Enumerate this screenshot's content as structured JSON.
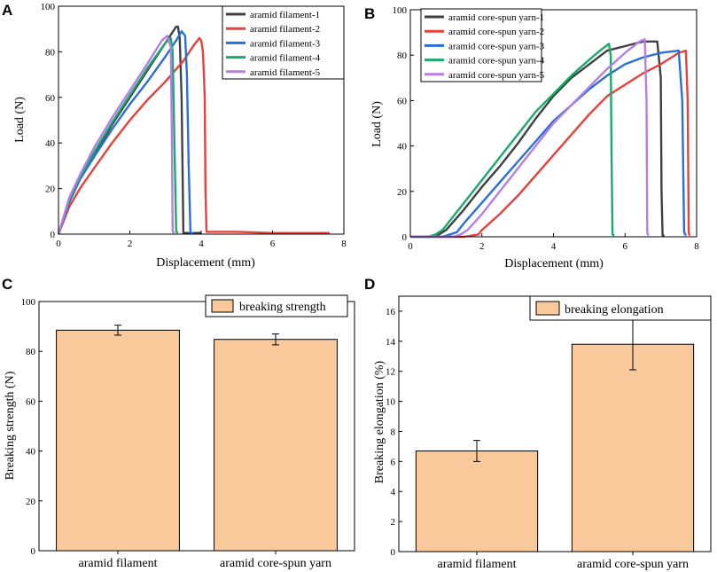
{
  "chart_data": [
    {
      "panel": "A",
      "type": "line",
      "xlabel": "Displacement (mm)",
      "ylabel": "Load (N)",
      "xlim": [
        0,
        8
      ],
      "ylim": [
        0,
        100
      ],
      "xticks": [
        0,
        2,
        4,
        6,
        8
      ],
      "yticks": [
        0,
        20,
        40,
        60,
        80,
        100
      ],
      "legend_position": "top-right",
      "series": [
        {
          "name": "aramid filament-1",
          "color": "#404040",
          "x": [
            0,
            0.3,
            0.6,
            1.0,
            1.5,
            2.0,
            2.5,
            3.0,
            3.3,
            3.35,
            3.4,
            3.45,
            3.48,
            3.5,
            3.7,
            4.0
          ],
          "y": [
            0,
            14,
            24,
            35,
            48,
            60,
            72,
            84,
            91,
            91,
            86,
            60,
            25,
            0.5,
            0.5,
            0.5
          ]
        },
        {
          "name": "aramid filament-2",
          "color": "#e8403a",
          "x": [
            0,
            0.3,
            0.6,
            1.0,
            1.5,
            2.0,
            2.5,
            3.0,
            3.5,
            3.8,
            3.95,
            4.0,
            4.05,
            4.1,
            4.12,
            4.15,
            5.0,
            6.0,
            7.0,
            7.6
          ],
          "y": [
            0,
            12,
            20,
            29,
            40,
            50,
            59,
            67,
            76,
            83,
            86,
            85,
            80,
            60,
            20,
            1,
            1,
            0.5,
            0.5,
            0.5
          ]
        },
        {
          "name": "aramid filament-3",
          "color": "#2a6fd6",
          "x": [
            0,
            0.3,
            0.6,
            1.0,
            1.5,
            2.0,
            2.5,
            3.0,
            3.3,
            3.45,
            3.55,
            3.6,
            3.65,
            3.7,
            3.8
          ],
          "y": [
            0,
            14,
            24,
            34,
            46,
            57,
            67,
            78,
            85,
            89,
            87,
            70,
            30,
            0.5,
            0.5
          ]
        },
        {
          "name": "aramid filament-4",
          "color": "#1aaa6a",
          "x": [
            0,
            0.3,
            0.6,
            1.0,
            1.5,
            2.0,
            2.5,
            3.0,
            3.15,
            3.2,
            3.25,
            3.3,
            3.35
          ],
          "y": [
            0,
            15,
            25,
            36,
            49,
            61,
            73,
            84,
            86,
            80,
            40,
            1,
            0.5
          ]
        },
        {
          "name": "aramid filament-5",
          "color": "#b57ee6",
          "x": [
            0,
            0.3,
            0.6,
            1.0,
            1.5,
            2.0,
            2.5,
            2.9,
            3.05,
            3.15,
            3.18,
            3.2,
            3.25
          ],
          "y": [
            0,
            16,
            26,
            38,
            51,
            63,
            75,
            85,
            87,
            82,
            40,
            1,
            0.5
          ]
        }
      ]
    },
    {
      "panel": "B",
      "type": "line",
      "xlabel": "Displacement (mm)",
      "ylabel": "Load (N)",
      "xlim": [
        0,
        8
      ],
      "ylim": [
        0,
        100
      ],
      "xticks": [
        0,
        2,
        4,
        6,
        8
      ],
      "yticks": [
        0,
        20,
        40,
        60,
        80,
        100
      ],
      "legend_position": "top-left",
      "series": [
        {
          "name": "aramid core-spun yarn-1",
          "color": "#404040",
          "x": [
            0,
            0.5,
            0.8,
            1.0,
            1.5,
            2.0,
            2.5,
            3.0,
            3.5,
            4.0,
            4.5,
            5.0,
            5.5,
            6.0,
            6.5,
            6.9,
            7.0,
            7.02,
            7.05,
            7.1
          ],
          "y": [
            0,
            0,
            1,
            3,
            12,
            22,
            31,
            41,
            52,
            62,
            70,
            76,
            82,
            84,
            86,
            86,
            70,
            20,
            0.5,
            0.5
          ]
        },
        {
          "name": "aramid core-spun yarn-2",
          "color": "#e8403a",
          "x": [
            0,
            1.5,
            1.9,
            2.0,
            2.5,
            3.0,
            3.5,
            4.0,
            4.5,
            5.0,
            5.5,
            6.0,
            6.5,
            7.0,
            7.5,
            7.7,
            7.75,
            7.78,
            7.8
          ],
          "y": [
            0,
            0,
            1,
            3,
            10,
            18,
            27,
            36,
            45,
            54,
            62,
            67,
            72,
            76,
            81,
            82,
            60,
            2,
            0.5
          ]
        },
        {
          "name": "aramid core-spun yarn-3",
          "color": "#2a6fd6",
          "x": [
            0,
            0.9,
            1.1,
            1.3,
            1.5,
            2.0,
            2.5,
            3.0,
            3.5,
            4.0,
            4.5,
            5.0,
            5.5,
            6.0,
            6.5,
            7.0,
            7.5,
            7.6,
            7.65,
            7.7
          ],
          "y": [
            0,
            0,
            1,
            2,
            6,
            15,
            24,
            33,
            42,
            51,
            58,
            65,
            71,
            76,
            79,
            81,
            82,
            60,
            2,
            0.5
          ]
        },
        {
          "name": "aramid core-spun yarn-4",
          "color": "#1aaa6a",
          "x": [
            0,
            0.5,
            0.7,
            0.9,
            1.0,
            1.5,
            2.0,
            2.5,
            3.0,
            3.5,
            4.0,
            4.5,
            5.0,
            5.3,
            5.55,
            5.6,
            5.62,
            5.65,
            5.7
          ],
          "y": [
            0,
            0,
            1,
            3,
            5,
            15,
            25,
            35,
            45,
            55,
            63,
            71,
            78,
            82,
            85,
            80,
            40,
            1,
            0.5
          ]
        },
        {
          "name": "aramid core-spun yarn-5",
          "color": "#b57ee6",
          "x": [
            0,
            1.2,
            1.4,
            1.6,
            2.0,
            2.5,
            3.0,
            3.5,
            4.0,
            4.5,
            5.0,
            5.5,
            6.0,
            6.4,
            6.55,
            6.6,
            6.62,
            6.65
          ],
          "y": [
            0,
            0,
            1,
            3,
            10,
            20,
            30,
            40,
            50,
            58,
            66,
            74,
            81,
            86,
            87,
            60,
            2,
            0.5
          ]
        }
      ]
    },
    {
      "panel": "C",
      "type": "bar",
      "categories": [
        "aramid filament",
        "aramid core-spun yarn"
      ],
      "values": [
        88.5,
        84.8
      ],
      "errors": [
        2.0,
        2.2
      ],
      "bar_color": "#f9c99b",
      "ylabel": "Breaking strength (N)",
      "ylim": [
        0,
        100
      ],
      "yticks": [
        0,
        20,
        40,
        60,
        80,
        100
      ],
      "legend": "breaking strength",
      "legend_position": "top-right"
    },
    {
      "panel": "D",
      "type": "bar",
      "categories": [
        "aramid filament",
        "aramid core-spun yarn"
      ],
      "values": [
        6.7,
        13.8
      ],
      "errors": [
        0.7,
        1.7
      ],
      "bar_color": "#f9c99b",
      "ylabel": "Breaking elongation (%)",
      "ylim": [
        0,
        17
      ],
      "yticks": [
        0,
        2,
        4,
        6,
        8,
        10,
        12,
        14,
        16
      ],
      "legend": "breaking elongation",
      "legend_position": "top-right"
    }
  ]
}
